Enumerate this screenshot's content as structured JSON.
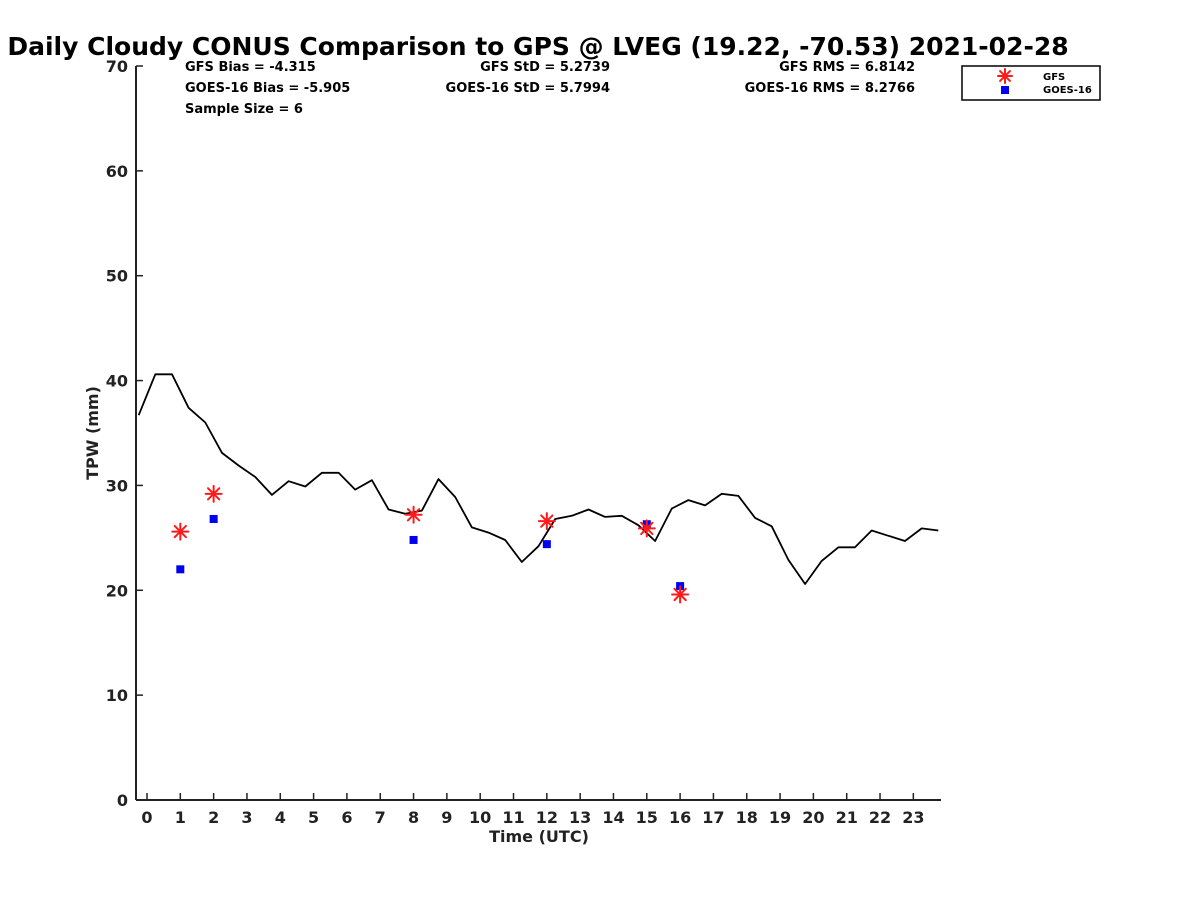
{
  "chart_data": {
    "type": "line",
    "title": "Daily Cloudy CONUS Comparison to GPS @ LVEG (19.22, -70.53) 2021-02-28",
    "xlabel": "Time (UTC)",
    "ylabel": "TPW (mm)",
    "xlim": [
      -0.33,
      23.83
    ],
    "ylim": [
      0,
      70
    ],
    "xticks": [
      "0",
      "1",
      "2",
      "3",
      "4",
      "5",
      "6",
      "7",
      "8",
      "9",
      "10",
      "11",
      "12",
      "13",
      "14",
      "15",
      "16",
      "17",
      "18",
      "19",
      "20",
      "21",
      "22",
      "23"
    ],
    "yticks": [
      "0",
      "10",
      "20",
      "30",
      "40",
      "50",
      "60",
      "70"
    ],
    "grid": false,
    "legend_position": "top-right, outside plot",
    "stats": {
      "gfs_bias": "GFS Bias = -4.315",
      "goes_bias": "GOES-16 Bias = -5.905",
      "sample_size": "Sample Size = 6",
      "gfs_std": "GFS StD = 5.2739",
      "goes_std": "GOES-16 StD = 5.7994",
      "gfs_rms": "GFS RMS = 6.8142",
      "goes_rms": "GOES-16 RMS = 8.2766"
    },
    "series": [
      {
        "kind": "line",
        "color": "#000000",
        "x": [
          -0.25,
          0.25,
          0.75,
          1.25,
          1.75,
          2.25,
          2.75,
          3.25,
          3.75,
          4.25,
          4.75,
          5.25,
          5.75,
          6.25,
          6.75,
          7.25,
          7.75,
          8.25,
          8.75,
          9.25,
          9.75,
          10.25,
          10.75,
          11.25,
          11.75,
          12.25,
          12.75,
          13.25,
          13.75,
          14.25,
          14.75,
          15.25,
          15.75,
          16.25,
          16.75,
          17.25,
          17.75,
          18.25,
          18.75,
          19.25,
          19.75,
          20.25,
          20.75,
          21.25,
          21.75,
          22.25,
          22.75,
          23.25,
          23.75
        ],
        "y": [
          36.7,
          40.6,
          40.6,
          37.4,
          36.0,
          33.1,
          31.9,
          30.8,
          29.1,
          30.4,
          29.9,
          31.2,
          31.2,
          29.6,
          30.5,
          27.7,
          27.3,
          27.6,
          30.6,
          28.9,
          26.0,
          25.5,
          24.8,
          22.7,
          24.2,
          26.8,
          27.1,
          27.7,
          27.0,
          27.1,
          26.2,
          24.7,
          27.8,
          28.6,
          28.1,
          29.2,
          29.0,
          26.9,
          26.1,
          22.9,
          20.6,
          22.8,
          24.1,
          24.1,
          25.7,
          25.2,
          24.7,
          25.9,
          25.7
        ]
      },
      {
        "name": "GFS",
        "kind": "marker",
        "marker": "asterisk",
        "color": "#ff1a1a",
        "x": [
          1,
          2,
          8,
          12,
          15,
          16
        ],
        "y": [
          25.6,
          29.2,
          27.2,
          26.6,
          25.9,
          19.6
        ]
      },
      {
        "name": "GOES-16",
        "kind": "marker",
        "marker": "square",
        "color": "#0000ee",
        "x": [
          1,
          2,
          8,
          12,
          15,
          16
        ],
        "y": [
          22.0,
          26.8,
          24.8,
          24.4,
          26.3,
          20.4
        ]
      }
    ]
  }
}
